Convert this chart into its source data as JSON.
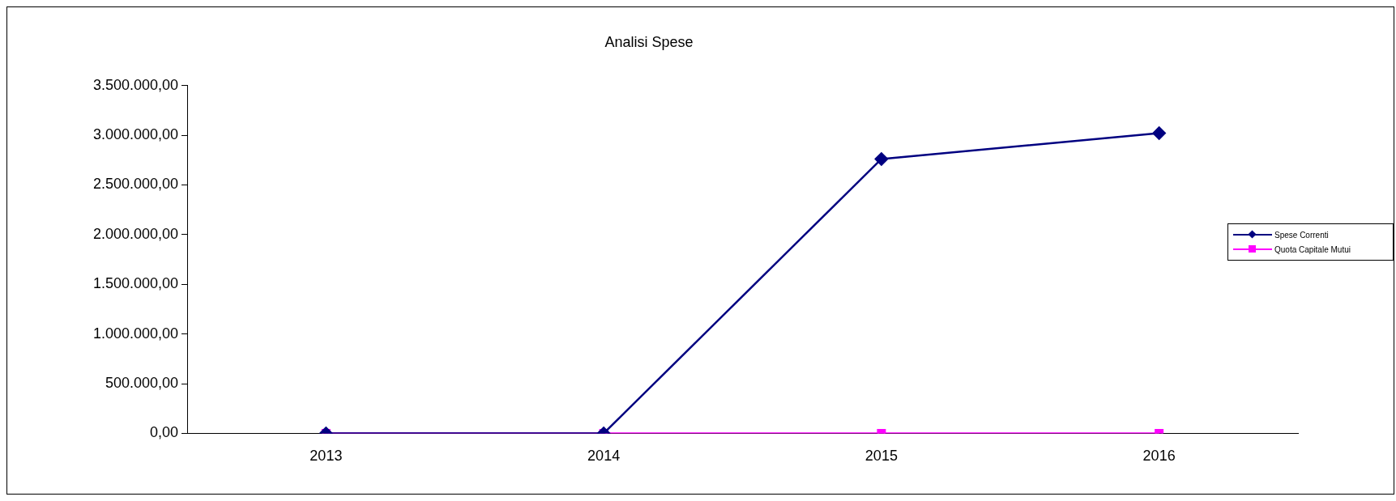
{
  "chart_data": {
    "type": "line",
    "title": "Analisi Spese",
    "categories": [
      "2013",
      "2014",
      "2015",
      "2016"
    ],
    "series": [
      {
        "name": "Spese Correnti",
        "color": "#000080",
        "marker": "diamond",
        "values": [
          0,
          0,
          2760000,
          3020000
        ]
      },
      {
        "name": "Quota Capitale Mutui",
        "color": "#ff00ff",
        "marker": "square",
        "values": [
          0,
          0,
          0,
          0
        ]
      }
    ],
    "ylim": [
      0,
      3500000
    ],
    "yticks": [
      {
        "value": 0,
        "label": "0,00"
      },
      {
        "value": 500000,
        "label": "500.000,00"
      },
      {
        "value": 1000000,
        "label": "1.000.000,00"
      },
      {
        "value": 1500000,
        "label": "1.500.000,00"
      },
      {
        "value": 2000000,
        "label": "2.000.000,00"
      },
      {
        "value": 2500000,
        "label": "2.500.000,00"
      },
      {
        "value": 3000000,
        "label": "3.000.000,00"
      },
      {
        "value": 3500000,
        "label": "3.500.000,00"
      }
    ],
    "grid": false,
    "legend": "right",
    "line_style": "solid"
  }
}
